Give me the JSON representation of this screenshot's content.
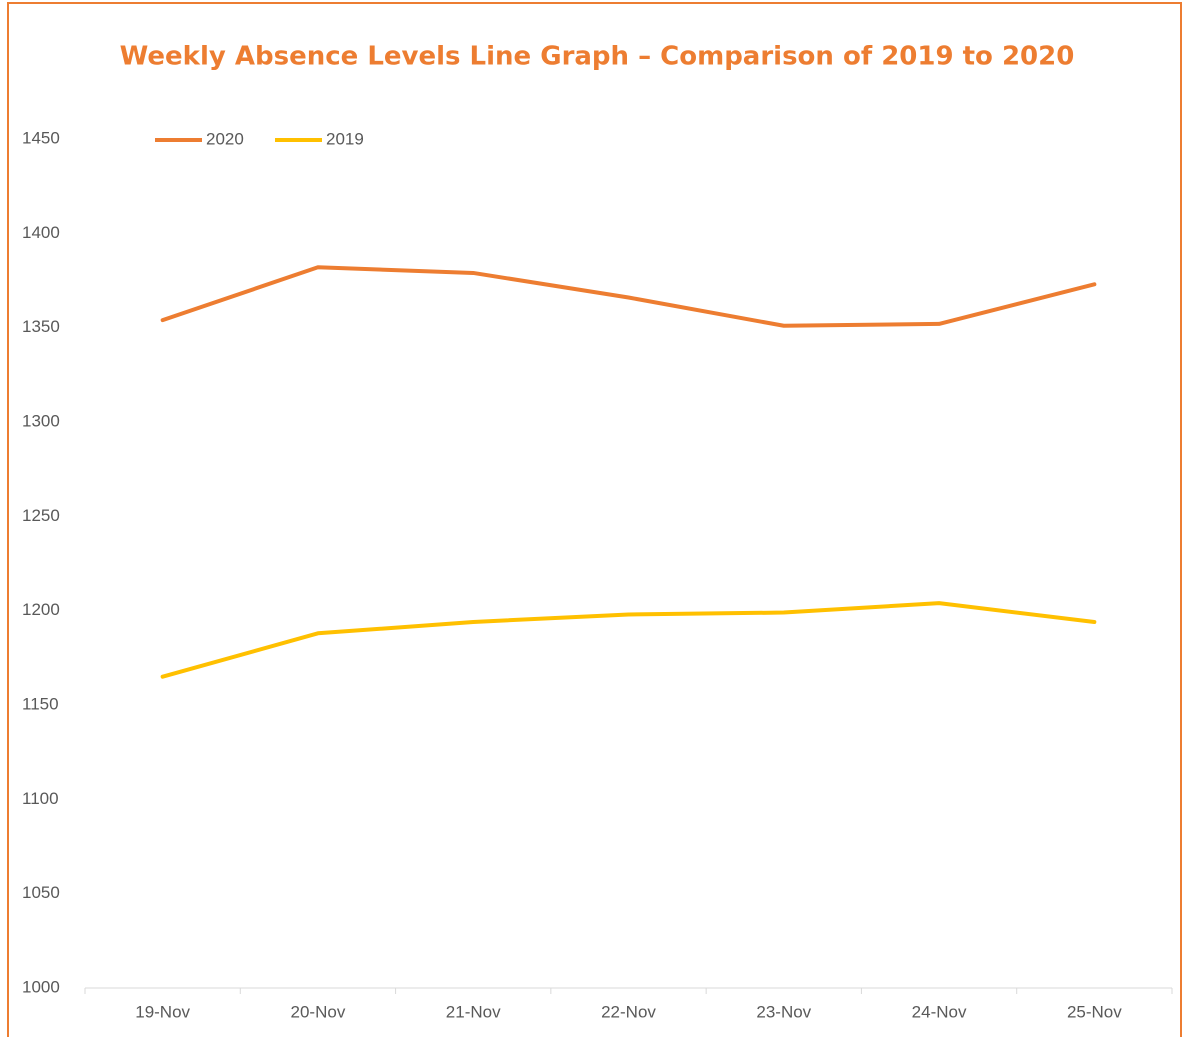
{
  "chart_data": {
    "type": "line",
    "title": "Weekly Absence Levels Line Graph – Comparison of 2019 to 2020",
    "categories": [
      "19-Nov",
      "20-Nov",
      "21-Nov",
      "22-Nov",
      "23-Nov",
      "24-Nov",
      "25-Nov"
    ],
    "series": [
      {
        "name": "2020",
        "color": "#ED7D31",
        "values": [
          1354,
          1382,
          1379,
          1366,
          1351,
          1352,
          1373
        ]
      },
      {
        "name": "2019",
        "color": "#FFC000",
        "values": [
          1165,
          1188,
          1194,
          1198,
          1199,
          1204,
          1194
        ]
      }
    ],
    "ylim": [
      1000,
      1450
    ],
    "yticks": [
      1000,
      1050,
      1100,
      1150,
      1200,
      1250,
      1300,
      1350,
      1400,
      1450
    ],
    "grid": false,
    "legend": "top-left"
  }
}
